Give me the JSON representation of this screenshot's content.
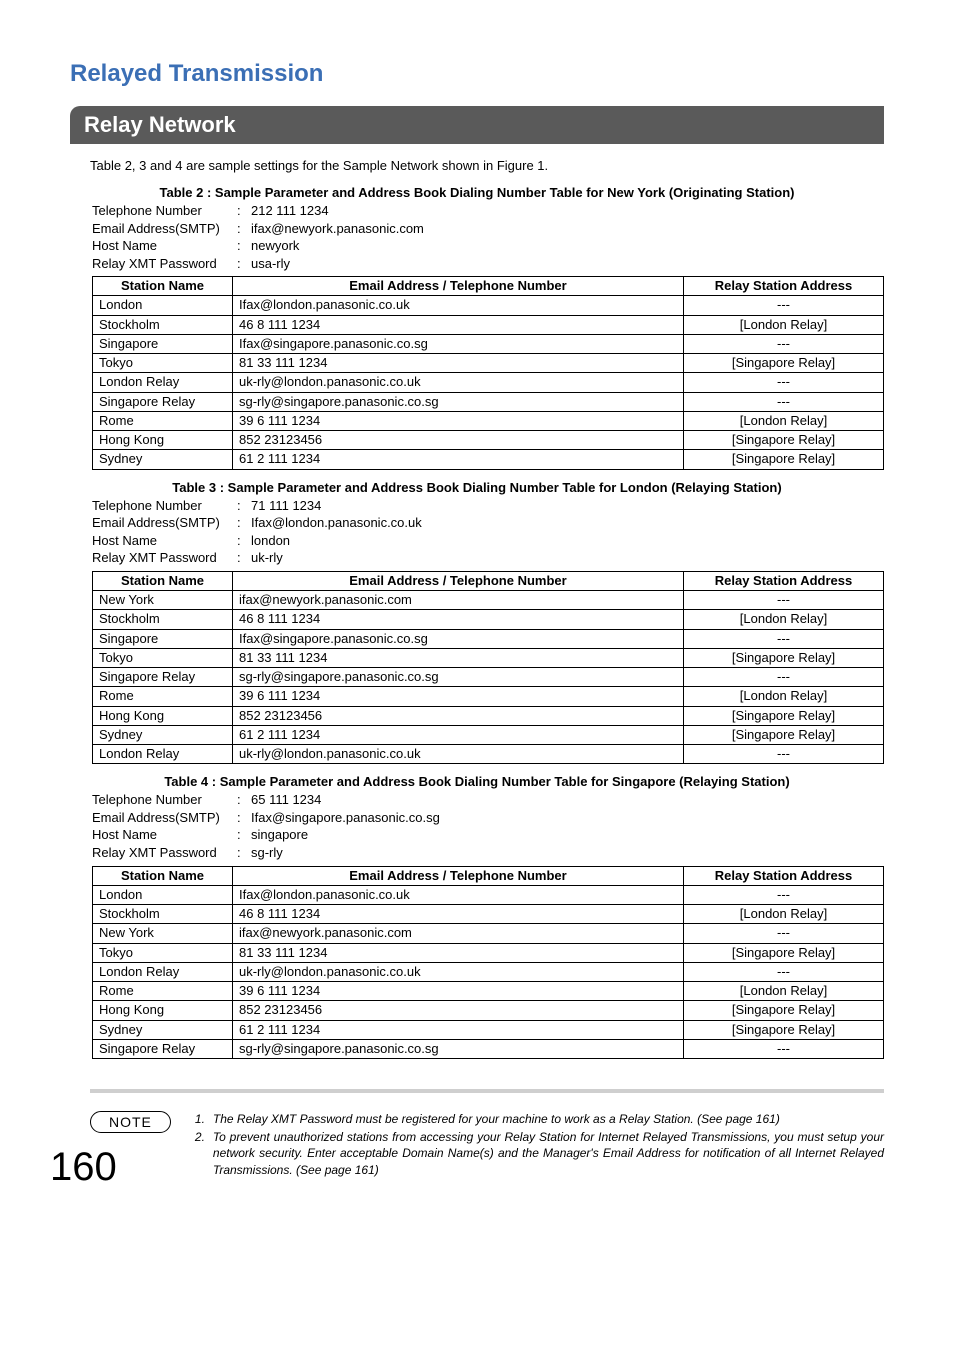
{
  "doc_title": "Relayed Transmission",
  "section_title": "Relay Network",
  "intro": "Table 2, 3 and 4 are sample settings for the Sample Network shown in Figure 1.",
  "page_number": "160",
  "note_label": "NOTE",
  "notes": [
    "The Relay XMT Password must be registered for your machine to work as a Relay Station. (See page 161)",
    "To prevent unauthorized stations from accessing your Relay Station for Internet Relayed Transmissions, you must setup your network security.  Enter acceptable Domain Name(s) and the Manager's Email Address for notification of all Internet Relayed Transmissions. (See page 161)"
  ],
  "param_labels": {
    "tel": "Telephone Number",
    "email": "Email Address(SMTP)",
    "host": "Host Name",
    "pwd": "Relay XMT Password"
  },
  "col_headers": {
    "station": "Station Name",
    "addr": "Email Address / Telephone Number",
    "relay": "Relay Station Address"
  },
  "tables": [
    {
      "caption": "Table 2 : Sample Parameter and Address Book Dialing Number Table for New York (Originating Station)",
      "params": {
        "tel": "212 111 1234",
        "email": "ifax@newyork.panasonic.com",
        "host": "newyork",
        "pwd": "usa-rly"
      },
      "rows": [
        [
          "London",
          "Ifax@london.panasonic.co.uk",
          "---"
        ],
        [
          "Stockholm",
          "46 8 111 1234",
          "[London Relay]"
        ],
        [
          "Singapore",
          "Ifax@singapore.panasonic.co.sg",
          "---"
        ],
        [
          "Tokyo",
          "81 33 111 1234",
          "[Singapore Relay]"
        ],
        [
          "London Relay",
          "uk-rly@london.panasonic.co.uk",
          "---"
        ],
        [
          "Singapore Relay",
          "sg-rly@singapore.panasonic.co.sg",
          "---"
        ],
        [
          "Rome",
          "39 6 111 1234",
          "[London Relay]"
        ],
        [
          "Hong Kong",
          "852 23123456",
          "[Singapore Relay]"
        ],
        [
          "Sydney",
          "61 2 111 1234",
          "[Singapore Relay]"
        ]
      ]
    },
    {
      "caption": "Table 3 : Sample Parameter and Address Book Dialing Number Table for London (Relaying Station)",
      "params": {
        "tel": "71 111 1234",
        "email": "Ifax@london.panasonic.co.uk",
        "host": "london",
        "pwd": "uk-rly"
      },
      "rows": [
        [
          "New York",
          "ifax@newyork.panasonic.com",
          "---"
        ],
        [
          "Stockholm",
          "46 8 111 1234",
          "[London Relay]"
        ],
        [
          "Singapore",
          "Ifax@singapore.panasonic.co.sg",
          "---"
        ],
        [
          "Tokyo",
          "81 33 111 1234",
          "[Singapore Relay]"
        ],
        [
          "Singapore Relay",
          "sg-rly@singapore.panasonic.co.sg",
          "---"
        ],
        [
          "Rome",
          "39 6 111 1234",
          "[London Relay]"
        ],
        [
          "Hong Kong",
          "852 23123456",
          "[Singapore Relay]"
        ],
        [
          "Sydney",
          "61 2 111 1234",
          "[Singapore Relay]"
        ],
        [
          "London Relay",
          "uk-rly@london.panasonic.co.uk",
          "---"
        ]
      ]
    },
    {
      "caption": "Table 4 : Sample Parameter and Address Book Dialing Number Table for Singapore (Relaying Station)",
      "params": {
        "tel": "65 111 1234",
        "email": "Ifax@singapore.panasonic.co.sg",
        "host": "singapore",
        "pwd": "sg-rly"
      },
      "rows": [
        [
          "London",
          "Ifax@london.panasonic.co.uk",
          "---"
        ],
        [
          "Stockholm",
          "46 8 111 1234",
          "[London Relay]"
        ],
        [
          "New York",
          "ifax@newyork.panasonic.com",
          "---"
        ],
        [
          "Tokyo",
          "81 33 111 1234",
          "[Singapore Relay]"
        ],
        [
          "London Relay",
          "uk-rly@london.panasonic.co.uk",
          "---"
        ],
        [
          "Rome",
          "39 6 111 1234",
          "[London Relay]"
        ],
        [
          "Hong Kong",
          "852 23123456",
          "[Singapore Relay]"
        ],
        [
          "Sydney",
          "61 2 111 1234",
          "[Singapore Relay]"
        ],
        [
          "Singapore Relay",
          "sg-rly@singapore.panasonic.co.sg",
          "---"
        ]
      ]
    }
  ]
}
